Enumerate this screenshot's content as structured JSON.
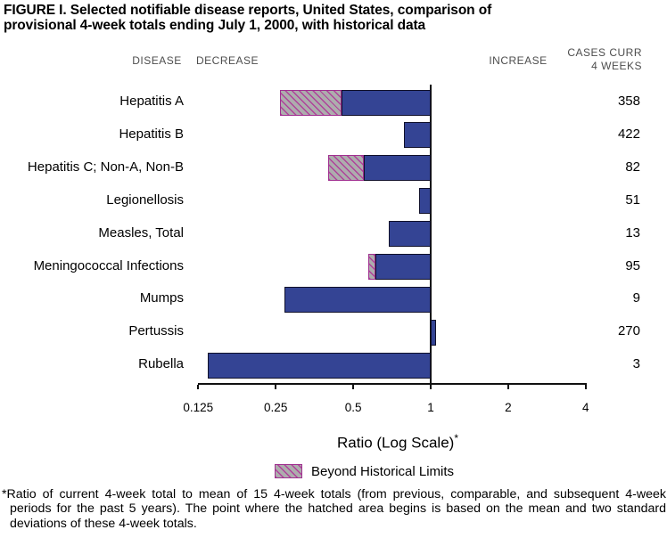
{
  "title": {
    "line1": "FIGURE I. Selected notifiable disease reports, United States, comparison of",
    "line2": "provisional 4-week totals ending July 1, 2000, with historical data"
  },
  "headers": {
    "disease": "DISEASE",
    "decrease": "DECREASE",
    "increase": "INCREASE",
    "cases_line1": "CASES CURR",
    "cases_line2": "4 WEEKS"
  },
  "chart_data": {
    "type": "bar",
    "orientation": "horizontal",
    "scale": "log2",
    "baseline_ratio": 1,
    "axis": {
      "label": "Ratio (Log Scale)",
      "label_sup": "*",
      "ticks": [
        0.125,
        0.25,
        0.5,
        1,
        2,
        4
      ],
      "tick_labels": [
        "0.125",
        "0.25",
        "0.5",
        "1",
        "2",
        "4"
      ],
      "range": [
        0.125,
        4
      ]
    },
    "legend": {
      "label": "Beyond Historical Limits",
      "swatch": "hatched-beyond-limits"
    },
    "rows": [
      {
        "disease": "Hepatitis A",
        "cases": "358",
        "ratio_from": 0.26,
        "ratio_to": 1,
        "hatch_from": 0.26,
        "hatch_to": 0.45
      },
      {
        "disease": "Hepatitis B",
        "cases": "422",
        "ratio_from": 0.79,
        "ratio_to": 1
      },
      {
        "disease": "Hepatitis C; Non-A, Non-B",
        "cases": "82",
        "ratio_from": 0.4,
        "ratio_to": 1,
        "hatch_from": 0.4,
        "hatch_to": 0.55
      },
      {
        "disease": "Legionellosis",
        "cases": "51",
        "ratio_from": 0.9,
        "ratio_to": 1
      },
      {
        "disease": "Measles, Total",
        "cases": "13",
        "ratio_from": 0.69,
        "ratio_to": 1
      },
      {
        "disease": "Meningococcal Infections",
        "cases": "95",
        "ratio_from": 0.57,
        "ratio_to": 1,
        "hatch_from": 0.57,
        "hatch_to": 0.61
      },
      {
        "disease": "Mumps",
        "cases": "9",
        "ratio_from": 0.27,
        "ratio_to": 1
      },
      {
        "disease": "Pertussis",
        "cases": "270",
        "ratio_from": 1,
        "ratio_to": 1.05
      },
      {
        "disease": "Rubella",
        "cases": "3",
        "ratio_from": 0.136,
        "ratio_to": 1
      }
    ]
  },
  "footnote": "*Ratio of current 4-week total to mean of 15 4-week totals (from previous, comparable, and subsequent 4-week periods for the past 5 years). The point where the hatched area begins is based on the mean and two standard deviations of these 4-week totals.",
  "colors": {
    "bar_fill": "#344494",
    "bar_border": "#10102a",
    "hatch_bg": "#adadad",
    "hatch_line": "#b03a9a",
    "hatch_border": "#a03090",
    "axis": "#111111"
  }
}
